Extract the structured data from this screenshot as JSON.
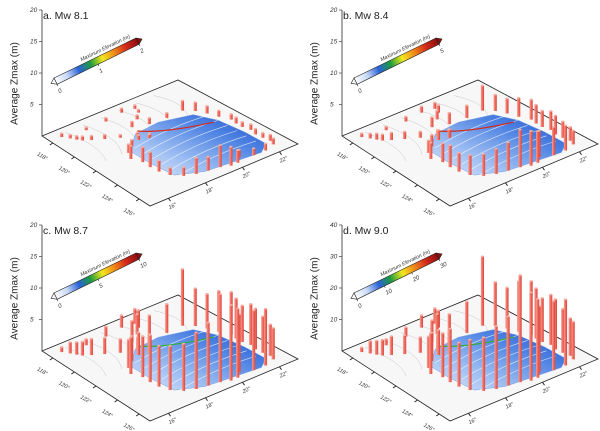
{
  "figure": {
    "y_axis_label": "Average Zmax (m)",
    "colorbar_label": "Maximum Elevation (m)",
    "longitude_ticks": [
      "118°",
      "120°",
      "122°",
      "124°",
      "126°"
    ],
    "latitude_ticks": [
      "16°",
      "18°",
      "20°",
      "22°"
    ],
    "bar_color": "#f06a5f",
    "colormap": [
      "#ffffff",
      "#c7d8f5",
      "#2a62d9",
      "#1e9c3c",
      "#f2e81e",
      "#f08a1a",
      "#d42a1a",
      "#8c0f0f"
    ],
    "sea_colors": [
      "#dce8fb",
      "#9bbcf2",
      "#4f84e3",
      "#1f4fc8"
    ]
  },
  "chart_data": [
    {
      "type": "bar",
      "panel_label": "a. Mw 8.1",
      "title": "a. Mw 8.1",
      "ylabel": "Average Zmax (m)",
      "ylim": [
        0,
        20
      ],
      "yticks": [
        "5",
        "10",
        "15",
        "20"
      ],
      "colorbar": {
        "label": "Maximum Elevation (m)",
        "range": [
          0,
          2
        ],
        "ticks": [
          "0",
          "1",
          "2"
        ]
      },
      "values": [
        0.6,
        0.5,
        0.6,
        0.7,
        0.6,
        0.5,
        0.7,
        0.9,
        1.0,
        0.8,
        1.6,
        1.4,
        1.2,
        1.0,
        0.9,
        1.0,
        0.8,
        0.9,
        0.9,
        0.8,
        1.0,
        1.0,
        1.1,
        1.1,
        1.2,
        2.0,
        3.0,
        3.5,
        2.2,
        2.6,
        1.4,
        1.2,
        1.8,
        2.4,
        2.4,
        2.1,
        1.4,
        1.0,
        0.8,
        0.6,
        0.6,
        0.6,
        0.5,
        0.7,
        0.7,
        0.7,
        0.6,
        0.6
      ]
    },
    {
      "type": "bar",
      "panel_label": "b. Mw 8.4",
      "title": "b. Mw 8.4",
      "ylabel": "Average Zmax (m)",
      "ylim": [
        0,
        20
      ],
      "yticks": [
        "5",
        "10",
        "15",
        "20"
      ],
      "colorbar": {
        "label": "Maximum Elevation (m)",
        "range": [
          0,
          5
        ],
        "ticks": [
          "0",
          "5"
        ]
      },
      "values": [
        0.6,
        0.6,
        0.8,
        1.0,
        1.0,
        1.2,
        1.4,
        1.6,
        1.8,
        2.0,
        4.0,
        2.6,
        2.4,
        3.0,
        3.2,
        3.0,
        2.6,
        3.0,
        3.0,
        2.6,
        2.2,
        2.2,
        4.0,
        4.5,
        4.2,
        5.0,
        5.5,
        6.0,
        4.5,
        4.0,
        3.5,
        3.2,
        3.0,
        3.5,
        3.0,
        2.6,
        2.0,
        1.8,
        1.6,
        1.4,
        1.2,
        1.0,
        1.0,
        1.2,
        1.2,
        1.0,
        1.0,
        0.8
      ]
    },
    {
      "type": "bar",
      "panel_label": "c. Mw 8.7",
      "title": "c. Mw 8.7",
      "ylabel": "Average Zmax (m)",
      "ylim": [
        0,
        20
      ],
      "yticks": [
        "5",
        "10",
        "15",
        "20"
      ],
      "colorbar": {
        "label": "Maximum Elevation (m)",
        "range": [
          0,
          10
        ],
        "ticks": [
          "0",
          "5",
          "10"
        ]
      },
      "values": [
        0.8,
        1.0,
        1.6,
        2.0,
        2.4,
        2.8,
        3.2,
        3.4,
        3.8,
        4.6,
        9.0,
        6.0,
        5.5,
        6.5,
        6.8,
        6.4,
        5.8,
        6.5,
        6.5,
        5.8,
        5.0,
        5.0,
        9.0,
        9.5,
        9.2,
        11.0,
        12.0,
        14.0,
        10.0,
        9.0,
        7.5,
        7.0,
        6.5,
        7.5,
        6.5,
        5.8,
        4.5,
        4.0,
        3.6,
        3.0,
        2.6,
        2.2,
        2.2,
        2.6,
        2.6,
        2.2,
        2.0,
        1.8
      ]
    },
    {
      "type": "bar",
      "panel_label": "d. Mw 9.0",
      "title": "d. Mw 9.0",
      "ylabel": "Average Zmax (m)",
      "ylim": [
        0,
        40
      ],
      "yticks": [
        "10",
        "20",
        "30",
        "40"
      ],
      "colorbar": {
        "label": "Maximum Elevation (m)",
        "range": [
          0,
          30
        ],
        "ticks": [
          "0",
          "10",
          "20",
          "30"
        ]
      },
      "values": [
        1.5,
        2.0,
        3.0,
        4.0,
        5.0,
        5.5,
        6.5,
        7.0,
        8.0,
        10.0,
        22.0,
        14.0,
        13.0,
        16.0,
        17.0,
        16.0,
        14.0,
        16.0,
        16.0,
        14.0,
        12.0,
        12.0,
        21.0,
        22.0,
        21.0,
        25.0,
        28.0,
        34.0,
        22.0,
        20.0,
        17.0,
        16.0,
        14.0,
        17.0,
        14.0,
        13.0,
        10.0,
        9.0,
        8.0,
        7.0,
        6.0,
        5.0,
        5.0,
        6.0,
        6.0,
        5.0,
        4.5,
        4.0
      ]
    }
  ]
}
